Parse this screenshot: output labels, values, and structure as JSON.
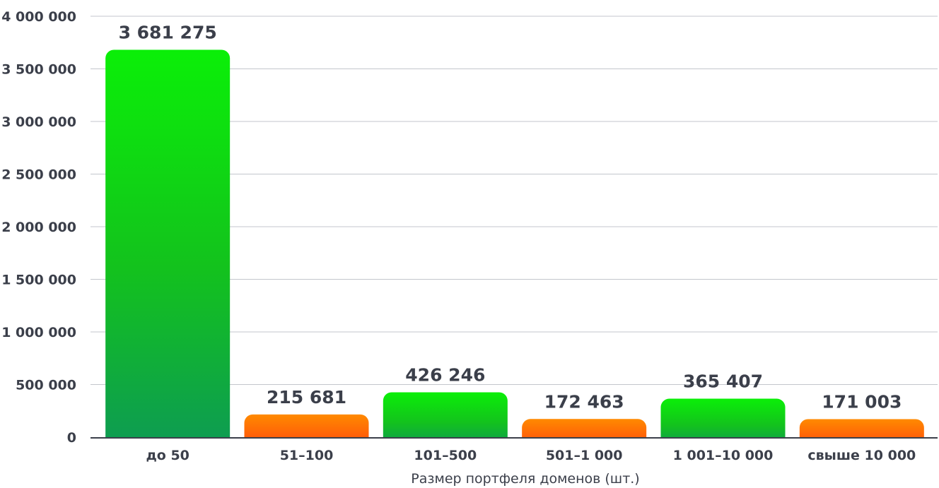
{
  "chart_data": {
    "type": "bar",
    "title": "",
    "xlabel": "Размер портфеля доменов (шт.)",
    "ylabel": "",
    "ylim": [
      0,
      4000000
    ],
    "yticks": [
      0,
      500000,
      1000000,
      1500000,
      2000000,
      2500000,
      3000000,
      3500000,
      4000000
    ],
    "ytick_labels": [
      "0",
      "500 000",
      "1 000 000",
      "1 500 000",
      "2 000 000",
      "2 500 000",
      "3 000 000",
      "3 500 000",
      "4 000 000"
    ],
    "grid": true,
    "categories": [
      "до 50",
      "51–100",
      "101–500",
      "501–1 000",
      "1 001–10 000",
      "свыше 10 000"
    ],
    "values": [
      3681275,
      215681,
      426246,
      172463,
      365407,
      171003
    ],
    "value_labels": [
      "3  681 275",
      "215 681",
      "426 246",
      "172 463",
      "365 407",
      "171 003"
    ],
    "bar_colors": [
      "green",
      "orange",
      "green",
      "orange",
      "green",
      "orange"
    ],
    "colors": {
      "green_top": "#0bef08",
      "green_mid": "#13c21d",
      "green_bottom": "#0d9b53",
      "orange_top": "#ff8a00",
      "orange_bottom": "#ff4b0c",
      "grid": "#c3c6cc",
      "axis": "#3b3f4a",
      "text": "#3b3f4a"
    }
  }
}
